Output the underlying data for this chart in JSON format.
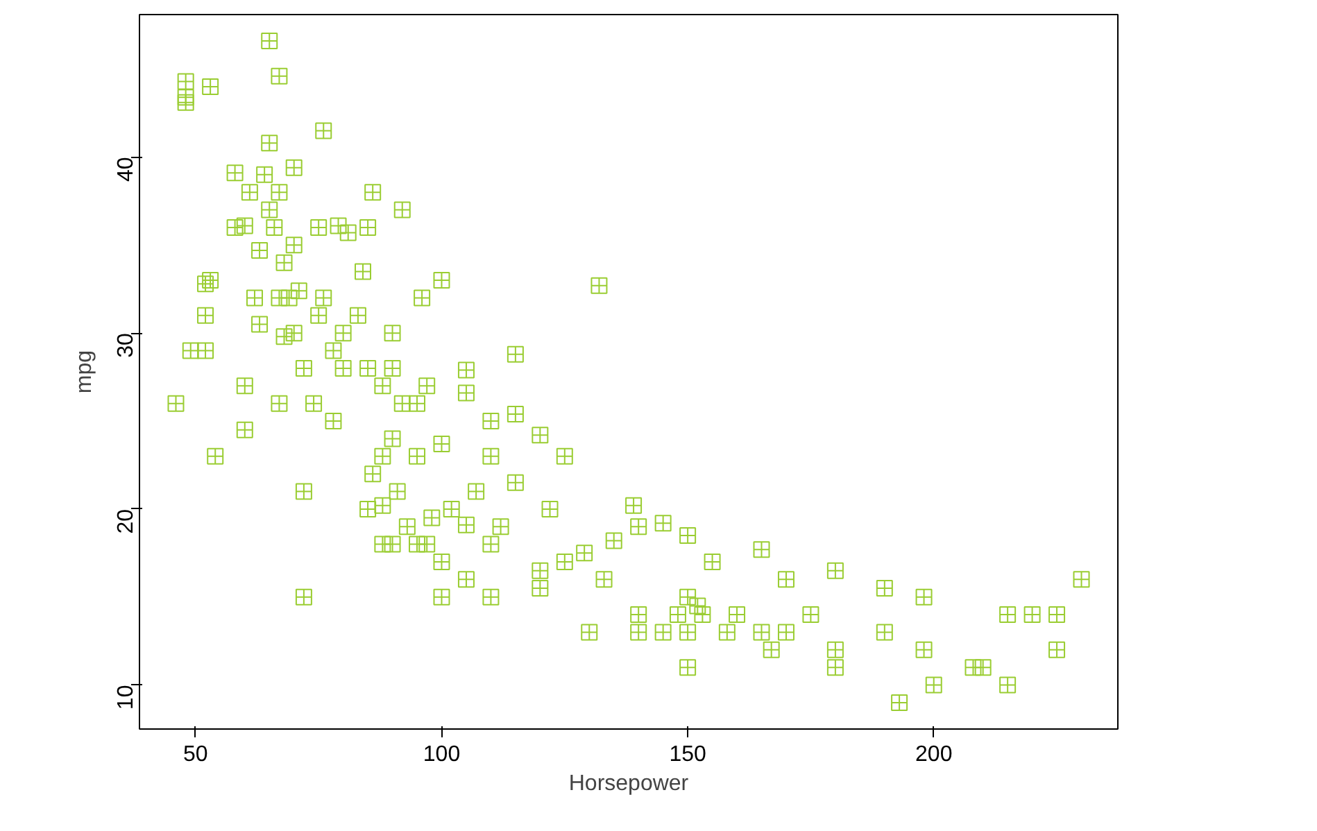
{
  "chart_data": {
    "type": "scatter",
    "xlabel": "Horsepower",
    "ylabel": "mpg",
    "x": [
      46,
      48,
      48,
      48,
      49,
      52,
      52,
      52,
      53,
      53,
      54,
      58,
      58,
      60,
      60,
      60,
      61,
      62,
      63,
      63,
      64,
      65,
      65,
      65,
      66,
      67,
      67,
      67,
      67,
      68,
      68,
      69,
      70,
      70,
      70,
      71,
      72,
      72,
      72,
      74,
      75,
      75,
      76,
      76,
      78,
      78,
      79,
      80,
      80,
      81,
      83,
      84,
      85,
      85,
      85,
      86,
      86,
      88,
      88,
      88,
      88,
      90,
      90,
      90,
      90,
      91,
      92,
      92,
      93,
      95,
      95,
      95,
      96,
      97,
      97,
      98,
      100,
      100,
      100,
      100,
      102,
      105,
      105,
      105,
      105,
      107,
      110,
      110,
      110,
      110,
      112,
      115,
      115,
      115,
      120,
      120,
      120,
      122,
      125,
      125,
      129,
      130,
      132,
      133,
      135,
      139,
      140,
      140,
      140,
      145,
      145,
      148,
      150,
      150,
      150,
      150,
      152,
      153,
      155,
      158,
      160,
      165,
      165,
      167,
      170,
      170,
      175,
      180,
      180,
      180,
      190,
      190,
      193,
      198,
      198,
      200,
      208,
      210,
      215,
      215,
      220,
      225,
      225,
      230
    ],
    "series": [
      {
        "color": "#9acd32",
        "values": [
          26,
          43.1,
          44.3,
          43.4,
          29,
          29,
          32.8,
          31,
          44,
          33,
          23,
          39.1,
          36,
          36.1,
          27,
          24.5,
          38,
          32,
          30.5,
          34.7,
          39,
          46.6,
          40.8,
          37,
          36,
          44.6,
          38,
          32,
          26,
          29.8,
          34,
          32,
          30,
          39.4,
          35,
          32.4,
          28,
          15,
          21,
          26,
          36,
          31,
          41.5,
          32,
          29,
          25,
          36.1,
          30,
          28,
          35.7,
          31,
          33.5,
          36,
          28,
          20,
          38,
          22,
          27,
          18,
          23,
          20.2,
          30,
          24,
          18,
          28,
          21,
          26,
          37,
          19,
          23,
          26,
          18,
          32,
          27,
          18,
          19.5,
          33,
          17,
          15,
          23.7,
          20,
          27.9,
          26.6,
          19.1,
          16,
          21,
          23,
          18,
          15,
          25,
          19,
          28.8,
          25.4,
          21.5,
          24.2,
          16.5,
          15.5,
          20,
          23,
          17,
          17.5,
          13,
          32.7,
          16,
          18.2,
          20.2,
          14,
          19,
          13,
          19.2,
          13,
          14,
          18.5,
          15,
          11,
          13,
          14.5,
          14,
          17,
          13,
          14,
          17.7,
          13,
          12,
          16,
          13,
          14,
          16.5,
          12,
          11,
          15.5,
          13,
          9,
          15,
          12,
          10,
          11,
          11,
          14,
          10,
          14,
          14,
          12,
          16
        ]
      }
    ],
    "xlim": [
      38.6,
      237.4
    ],
    "ylim": [
      7.5,
      48.1
    ],
    "xticks": [
      50,
      100,
      150,
      200
    ],
    "yticks": [
      10,
      20,
      30,
      40
    ],
    "marker": "cross",
    "grid": false
  }
}
